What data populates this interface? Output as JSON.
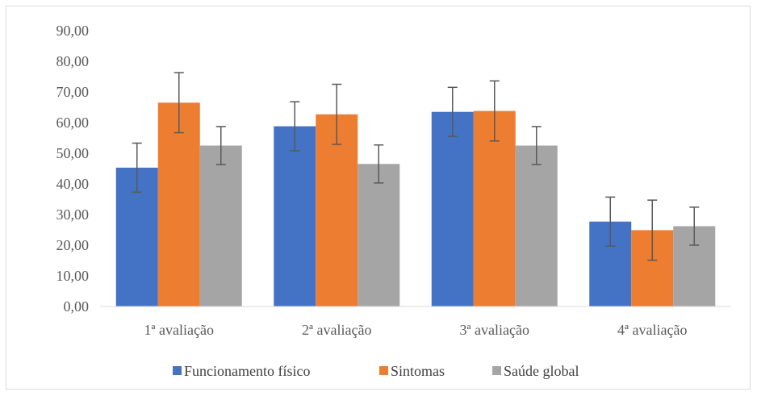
{
  "chart_data": {
    "type": "bar",
    "categories": [
      "1ª avaliação",
      "2ª avaliação",
      "3ª avaliação",
      "4ª avaliação"
    ],
    "series": [
      {
        "name": "Funcionamento físico",
        "color": "#4472C4",
        "values": [
          45.3,
          58.8,
          63.5,
          27.7
        ],
        "error": [
          8.0,
          8.0,
          8.0,
          8.0
        ]
      },
      {
        "name": "Sintomas",
        "color": "#ED7D31",
        "values": [
          66.5,
          62.7,
          63.8,
          24.9
        ],
        "error": [
          9.8,
          9.8,
          9.8,
          9.8
        ]
      },
      {
        "name": "Saúde global",
        "color": "#A5A5A5",
        "values": [
          52.5,
          46.5,
          52.5,
          26.2
        ],
        "error": [
          6.2,
          6.2,
          6.2,
          6.2
        ]
      }
    ],
    "yticks": [
      "0,00",
      "10,00",
      "20,00",
      "30,00",
      "40,00",
      "50,00",
      "60,00",
      "70,00",
      "80,00",
      "90,00"
    ],
    "ylim": [
      0,
      90
    ],
    "grid": false,
    "legend_position": "bottom",
    "title": "",
    "xlabel": "",
    "ylabel": ""
  }
}
